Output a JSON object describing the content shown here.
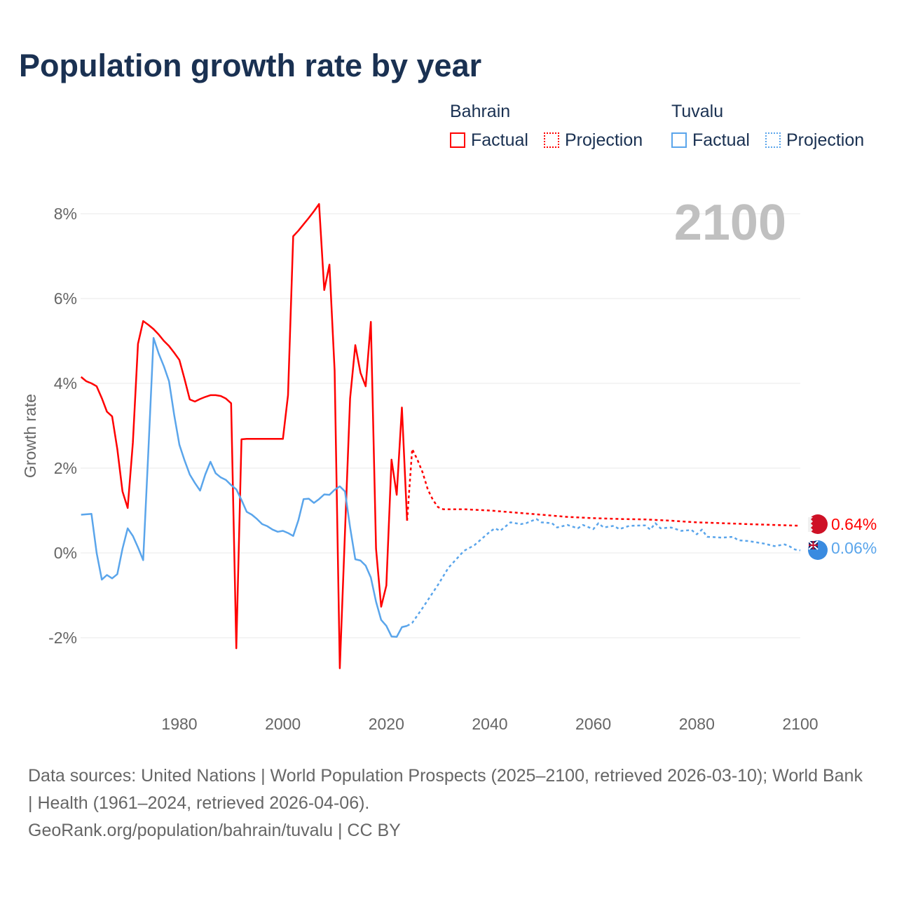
{
  "title": "Population growth rate by year",
  "legend": {
    "groups": [
      {
        "name": "Bahrain",
        "factual": "Factual",
        "projection": "Projection",
        "color": "#ff0000"
      },
      {
        "name": "Tuvalu",
        "factual": "Factual",
        "projection": "Projection",
        "color": "#5aa5eb"
      }
    ]
  },
  "year_label": "2100",
  "end_labels": {
    "bahrain": "0.64%",
    "tuvalu": "0.06%"
  },
  "footer": {
    "sources": "Data sources: United Nations | World Population Prospects (2025–2100, retrieved 2026-03-10); World Bank | Health (1961–2024, retrieved 2026-04-06).",
    "credit": "GeoRank.org/population/bahrain/tuvalu | CC BY"
  },
  "chart_data": {
    "type": "line",
    "title": "Population growth rate by year",
    "xlabel": "",
    "ylabel": "Growth rate",
    "xlim": [
      1961,
      2100
    ],
    "ylim": [
      -3.5,
      9
    ],
    "xticks": [
      1980,
      2000,
      2020,
      2040,
      2060,
      2080,
      2100
    ],
    "yticks": [
      -2,
      0,
      2,
      4,
      6,
      8
    ],
    "ytick_labels": [
      "-2%",
      "0%",
      "2%",
      "4%",
      "6%",
      "8%"
    ],
    "grid": true,
    "series": [
      {
        "name": "Bahrain Factual",
        "color": "#ff0000",
        "dashed": false,
        "x": [
          1961,
          1962,
          1963,
          1964,
          1965,
          1966,
          1967,
          1968,
          1969,
          1970,
          1971,
          1972,
          1973,
          1974,
          1975,
          1976,
          1977,
          1978,
          1979,
          1980,
          1981,
          1982,
          1983,
          1984,
          1985,
          1986,
          1987,
          1988,
          1989,
          1990,
          1991,
          1992,
          1993,
          1994,
          1995,
          1996,
          1997,
          1998,
          1999,
          2000,
          2001,
          2002,
          2003,
          2004,
          2005,
          2006,
          2007,
          2008,
          2009,
          2010,
          2011,
          2012,
          2013,
          2014,
          2015,
          2016,
          2017,
          2018,
          2019,
          2020,
          2021,
          2022,
          2023,
          2024
        ],
        "y": [
          4.15,
          4.05,
          4.0,
          3.93,
          3.65,
          3.33,
          3.22,
          2.45,
          1.45,
          1.06,
          2.6,
          4.93,
          5.47,
          5.38,
          5.28,
          5.15,
          5.0,
          4.88,
          4.72,
          4.55,
          4.1,
          3.62,
          3.57,
          3.63,
          3.68,
          3.72,
          3.72,
          3.7,
          3.64,
          3.53,
          -2.25,
          2.68,
          2.69,
          2.69,
          2.69,
          2.69,
          2.69,
          2.69,
          2.69,
          2.69,
          3.72,
          7.47,
          7.6,
          7.75,
          7.9,
          8.06,
          8.23,
          6.2,
          6.8,
          4.3,
          -2.72,
          0.5,
          3.65,
          4.9,
          4.25,
          3.93,
          5.45,
          0.1,
          -1.27,
          -0.77,
          2.2,
          1.37,
          3.43,
          0.76
        ]
      },
      {
        "name": "Bahrain Projection",
        "color": "#ff0000",
        "dashed": true,
        "x": [
          2024,
          2025,
          2026,
          2027,
          2028,
          2029,
          2030,
          2031,
          2035,
          2040,
          2045,
          2050,
          2055,
          2060,
          2065,
          2070,
          2075,
          2080,
          2085,
          2090,
          2095,
          2100
        ],
        "y": [
          0.76,
          2.45,
          2.2,
          1.9,
          1.5,
          1.25,
          1.08,
          1.03,
          1.03,
          1.0,
          0.95,
          0.9,
          0.85,
          0.82,
          0.8,
          0.79,
          0.76,
          0.72,
          0.7,
          0.68,
          0.66,
          0.64
        ]
      },
      {
        "name": "Tuvalu Factual",
        "color": "#5aa5eb",
        "dashed": false,
        "x": [
          1961,
          1962,
          1963,
          1964,
          1965,
          1966,
          1967,
          1968,
          1969,
          1970,
          1971,
          1972,
          1973,
          1974,
          1975,
          1976,
          1977,
          1978,
          1979,
          1980,
          1981,
          1982,
          1983,
          1984,
          1985,
          1986,
          1987,
          1988,
          1989,
          1990,
          1991,
          1992,
          1993,
          1994,
          1995,
          1996,
          1997,
          1998,
          1999,
          2000,
          2001,
          2002,
          2003,
          2004,
          2005,
          2006,
          2007,
          2008,
          2009,
          2010,
          2011,
          2012,
          2013,
          2014,
          2015,
          2016,
          2017,
          2018,
          2019,
          2020,
          2021,
          2022,
          2023,
          2024
        ],
        "y": [
          0.9,
          0.91,
          0.92,
          0.0,
          -0.63,
          -0.52,
          -0.6,
          -0.5,
          0.1,
          0.58,
          0.4,
          0.13,
          -0.17,
          2.4,
          5.07,
          4.7,
          4.4,
          4.05,
          3.25,
          2.55,
          2.18,
          1.85,
          1.65,
          1.47,
          1.85,
          2.15,
          1.88,
          1.78,
          1.72,
          1.6,
          1.5,
          1.25,
          0.97,
          0.9,
          0.8,
          0.68,
          0.63,
          0.55,
          0.5,
          0.52,
          0.47,
          0.4,
          0.77,
          1.27,
          1.28,
          1.18,
          1.27,
          1.38,
          1.37,
          1.49,
          1.57,
          1.45,
          0.6,
          -0.15,
          -0.18,
          -0.3,
          -0.58,
          -1.15,
          -1.58,
          -1.72,
          -1.97,
          -1.98,
          -1.75,
          -1.72
        ]
      },
      {
        "name": "Tuvalu Projection",
        "color": "#5aa5eb",
        "dashed": true,
        "x": [
          2024,
          2025,
          2027,
          2030,
          2032,
          2035,
          2037,
          2040,
          2041,
          2042,
          2044,
          2046,
          2047,
          2049,
          2050,
          2052,
          2053,
          2055,
          2057,
          2058,
          2060,
          2061,
          2062,
          2064,
          2065,
          2067,
          2070,
          2071,
          2072,
          2073,
          2075,
          2077,
          2079,
          2080,
          2081,
          2082,
          2085,
          2087,
          2088,
          2090,
          2093,
          2095,
          2097,
          2098,
          2099,
          2100
        ],
        "y": [
          -1.72,
          -1.65,
          -1.3,
          -0.75,
          -0.35,
          0.05,
          0.18,
          0.5,
          0.58,
          0.52,
          0.72,
          0.68,
          0.7,
          0.8,
          0.72,
          0.7,
          0.6,
          0.66,
          0.58,
          0.66,
          0.56,
          0.7,
          0.6,
          0.64,
          0.56,
          0.64,
          0.65,
          0.55,
          0.7,
          0.58,
          0.6,
          0.52,
          0.54,
          0.44,
          0.55,
          0.38,
          0.36,
          0.38,
          0.3,
          0.28,
          0.22,
          0.16,
          0.2,
          0.15,
          0.08,
          0.06
        ]
      }
    ]
  }
}
